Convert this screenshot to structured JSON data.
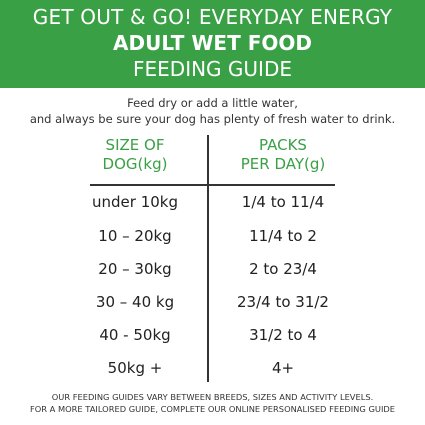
{
  "banner": {
    "line1": "GET OUT & GO! EVERYDAY ENERGY",
    "line2": "ADULT WET FOOD",
    "line3": "FEEDING GUIDE"
  },
  "intro": {
    "line1": "Feed dry or add a little water,",
    "line2": "and always be sure your dog has plenty of fresh water to drink."
  },
  "table": {
    "header_left": [
      "SIZE OF",
      "DOG(kg)"
    ],
    "header_right": [
      "PACKS",
      "PER DAY(g)"
    ],
    "rows": [
      {
        "size": "under 10kg",
        "packs": "1/4 to 11/4"
      },
      {
        "size": "10 – 20kg",
        "packs": "11/4 to 2"
      },
      {
        "size": "20 – 30kg",
        "packs": "2 to 23/4"
      },
      {
        "size": "30 – 40 kg",
        "packs": "23/4 to 31/2"
      },
      {
        "size": "40 - 50kg",
        "packs": "31/2 to 4"
      },
      {
        "size": "50kg +",
        "packs": "4+"
      }
    ]
  },
  "footer": {
    "line1": "OUR FEEDING GUIDES VARY BETWEEN BREEDS, SIZES AND ACTIVITY LEVELS.",
    "line2": "FOR A MORE TAILORED GUIDE, COMPLETE OUR ONLINE PERSONALISED FEEDING GUIDE"
  },
  "colors": {
    "brand_green": "#3aa046",
    "text": "#222222"
  }
}
